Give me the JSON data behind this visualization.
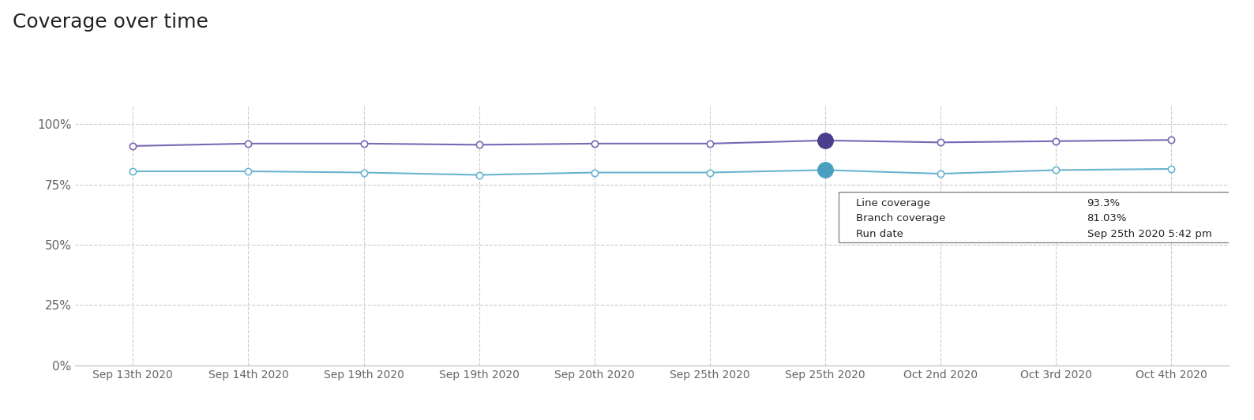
{
  "title": "Coverage over time",
  "x_labels": [
    "Sep 13th 2020",
    "Sep 14th 2020",
    "Sep 19th 2020",
    "Sep 19th 2020",
    "Sep 20th 2020",
    "Sep 25th 2020",
    "Sep 25th 2020",
    "Oct 2nd 2020",
    "Oct 3rd 2020",
    "Oct 4th 2020"
  ],
  "line_coverage": [
    91.0,
    92.0,
    92.0,
    91.5,
    92.0,
    92.0,
    93.3,
    92.5,
    93.0,
    93.5
  ],
  "branch_coverage": [
    80.5,
    80.5,
    80.0,
    79.0,
    80.0,
    80.0,
    81.03,
    79.5,
    81.0,
    81.5
  ],
  "highlighted_index": 6,
  "line_color": "#7b68b5",
  "branch_color": "#6ab4d0",
  "highlighted_line_color": "#4a3f8c",
  "highlighted_branch_color": "#4a9fc0",
  "grid_color": "#cccccc",
  "background_color": "#ffffff",
  "y_ticks": [
    0,
    25,
    50,
    75,
    100
  ],
  "y_labels": [
    "0%",
    "25%",
    "50%",
    "75%",
    "100%"
  ],
  "ylim": [
    0,
    108
  ],
  "tooltip": {
    "line_label": "Line coverage",
    "line_value": "93.3%",
    "branch_label": "Branch coverage",
    "branch_value": "81.03%",
    "date_label": "Run date",
    "date_value": "Sep 25th 2020 5:42 pm"
  },
  "legend_line_label": "Line coverage",
  "legend_branch_label": "Branch coverage",
  "title_fontsize": 18,
  "tick_fontsize": 10,
  "ytick_fontsize": 11
}
